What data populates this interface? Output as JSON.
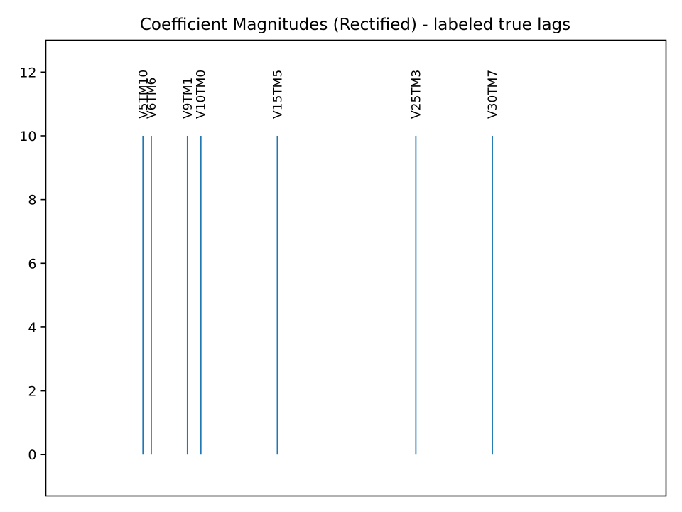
{
  "chart_data": {
    "type": "bar",
    "title": "Coefficient Magnitudes (Rectified) - labeled true lags",
    "xlabel": "",
    "ylabel": "",
    "xlim": [
      0,
      300
    ],
    "ylim": [
      -1.3,
      13
    ],
    "yticks": [
      0,
      2,
      4,
      6,
      8,
      10,
      12
    ],
    "ytick_labels": [
      "0",
      "2",
      "4",
      "6",
      "8",
      "10",
      "12"
    ],
    "grid": false,
    "bar_color": "#1f77b4",
    "bars": [
      {
        "label": "V5TM10",
        "x": 47,
        "value": 10
      },
      {
        "label": "V6TM6",
        "x": 51,
        "value": 10
      },
      {
        "label": "V9TM1",
        "x": 68.5,
        "value": 10
      },
      {
        "label": "V10TM0",
        "x": 75,
        "value": 10
      },
      {
        "label": "V15TM5",
        "x": 112,
        "value": 10
      },
      {
        "label": "V25TM3",
        "x": 179,
        "value": 10
      },
      {
        "label": "V30TM7",
        "x": 216,
        "value": 10
      }
    ]
  }
}
